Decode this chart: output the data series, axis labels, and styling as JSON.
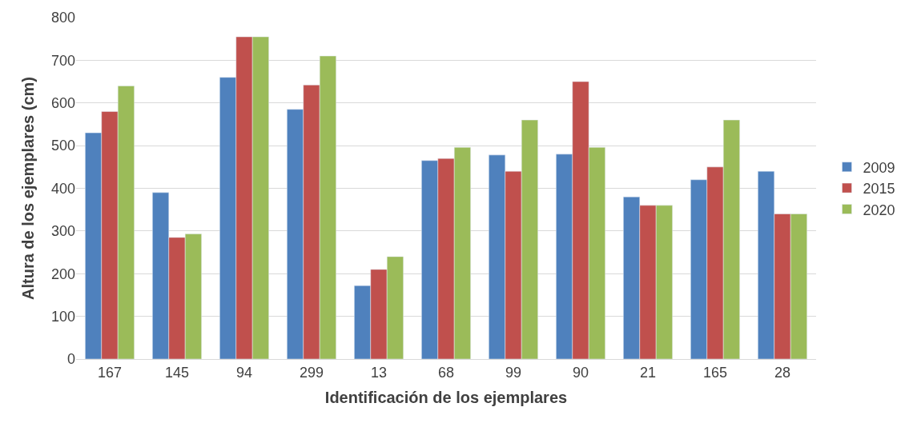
{
  "chart_data": {
    "type": "bar",
    "xlabel": "Identificación de los ejemplares",
    "ylabel": "Altura de los ejemplares (cm)",
    "categories": [
      "167",
      "145",
      "94",
      "299",
      "13",
      "68",
      "99",
      "90",
      "21",
      "165",
      "28"
    ],
    "series": [
      {
        "name": "2009",
        "color": "#4f81bd",
        "values": [
          530,
          390,
          660,
          585,
          172,
          465,
          478,
          480,
          380,
          420,
          440
        ]
      },
      {
        "name": "2015",
        "color": "#c0504d",
        "values": [
          580,
          285,
          755,
          642,
          210,
          470,
          440,
          650,
          360,
          450,
          340
        ]
      },
      {
        "name": "2020",
        "color": "#9bbb59",
        "values": [
          640,
          293,
          755,
          710,
          240,
          496,
          560,
          496,
          360,
          560,
          340
        ]
      }
    ],
    "ylim": [
      0,
      800
    ],
    "yticks": [
      0,
      100,
      200,
      300,
      400,
      500,
      600,
      700,
      800
    ],
    "grid": "y",
    "legend": "right"
  }
}
